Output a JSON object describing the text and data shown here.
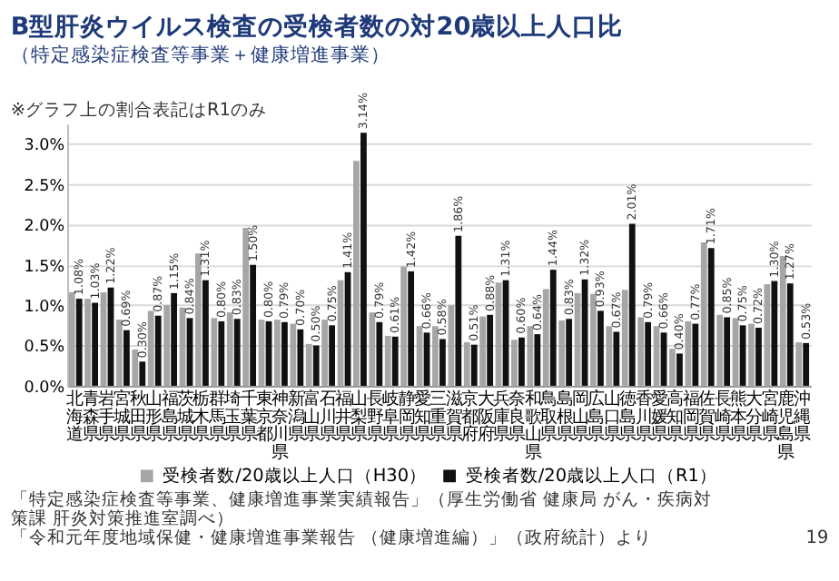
{
  "chart_data": {
    "type": "bar",
    "title": "B型肝炎ウイルス検査の受検者数の対20歳以上人口比",
    "subtitle": "（特定感染症検査等事業＋健康増進事業）",
    "categories": [
      "北海道",
      "青森県",
      "岩手県",
      "宮城県",
      "秋田県",
      "山形県",
      "福島県",
      "茨城県",
      "栃木県",
      "群馬県",
      "埼玉県",
      "千葉県",
      "東京都",
      "神奈川県",
      "新潟県",
      "富山県",
      "石川県",
      "福井県",
      "山梨県",
      "長野県",
      "岐阜県",
      "静岡県",
      "愛知県",
      "三重県",
      "滋賀県",
      "京都府",
      "大阪府",
      "兵庫県",
      "奈良県",
      "和歌山県",
      "鳥取県",
      "島根県",
      "岡山県",
      "広島県",
      "山口県",
      "徳島県",
      "香川県",
      "愛媛県",
      "高知県",
      "福岡県",
      "佐賀県",
      "長崎県",
      "熊本県",
      "大分県",
      "宮崎県",
      "鹿児島県",
      "沖縄県"
    ],
    "series": [
      {
        "name": "受検者数/20歳以上人口（H30）",
        "color": "#a6a6a6",
        "values": [
          1.16,
          1.08,
          1.16,
          0.82,
          0.45,
          0.93,
          1.0,
          0.97,
          1.64,
          0.84,
          0.91,
          1.96,
          0.82,
          0.82,
          0.77,
          0.52,
          0.82,
          1.31,
          2.79,
          0.91,
          0.62,
          1.48,
          0.74,
          0.74,
          1.0,
          0.54,
          0.86,
          1.28,
          0.57,
          0.74,
          1.2,
          0.81,
          1.15,
          1.14,
          0.74,
          1.19,
          0.85,
          0.74,
          0.46,
          0.8,
          1.78,
          0.88,
          0.84,
          0.77,
          1.26,
          1.61,
          0.54
        ]
      },
      {
        "name": "受検者数/20歳以上人口（R1）",
        "color": "#111111",
        "values": [
          1.08,
          1.03,
          1.22,
          0.69,
          0.3,
          0.87,
          1.15,
          0.84,
          1.31,
          0.8,
          0.83,
          1.5,
          0.8,
          0.79,
          0.7,
          0.5,
          0.75,
          1.41,
          3.14,
          0.79,
          0.61,
          1.42,
          0.66,
          0.58,
          1.86,
          0.51,
          0.88,
          1.31,
          0.6,
          0.64,
          1.44,
          0.83,
          1.32,
          0.93,
          0.67,
          2.01,
          0.79,
          0.66,
          0.4,
          0.77,
          1.71,
          0.85,
          0.75,
          0.72,
          1.3,
          1.27,
          0.53
        ],
        "value_labels": [
          "1.08%",
          "1.03%",
          "1.22%",
          "0.69%",
          "0.30%",
          "0.87%",
          "1.15%",
          "0.84%",
          "1.31%",
          "0.80%",
          "0.83%",
          "1.50%",
          "0.80%",
          "0.79%",
          "0.70%",
          "0.50%",
          "0.75%",
          "1.41%",
          "3.14%",
          "0.79%",
          "0.61%",
          "1.42%",
          "0.66%",
          "0.58%",
          "1.86%",
          "0.51%",
          "0.88%",
          "1.31%",
          "0.60%",
          "0.64%",
          "1.44%",
          "0.83%",
          "1.32%",
          "0.93%",
          "0.67%",
          "2.01%",
          "0.79%",
          "0.66%",
          "0.40%",
          "0.77%",
          "1.71%",
          "0.85%",
          "0.75%",
          "0.72%",
          "1.30%",
          "1.27%",
          "0.53%"
        ]
      }
    ],
    "ylim": [
      0,
      3.25
    ],
    "yticks": [
      {
        "value": 0,
        "label": "0.0%"
      },
      {
        "value": 0.5,
        "label": "0.5%"
      },
      {
        "value": 1.0,
        "label": "1.0%"
      },
      {
        "value": 1.5,
        "label": "1.5%"
      },
      {
        "value": 2.0,
        "label": "2.0%"
      },
      {
        "value": 2.5,
        "label": "2.5%"
      },
      {
        "value": 3.0,
        "label": "3.0%"
      }
    ],
    "grid": "y",
    "legend": "bottom",
    "annotations": [
      "※グラフ上の割合表記はR1のみ",
      "「特定感染症検査等事業、健康増進事業実績報告」（厚生労働省 健康局 がん・疾病対策課 肝炎対策推進室調べ）",
      "「令和元年度地域保健・健康増進事業報告 （健康増進編）」（政府統計）より",
      "19"
    ]
  }
}
